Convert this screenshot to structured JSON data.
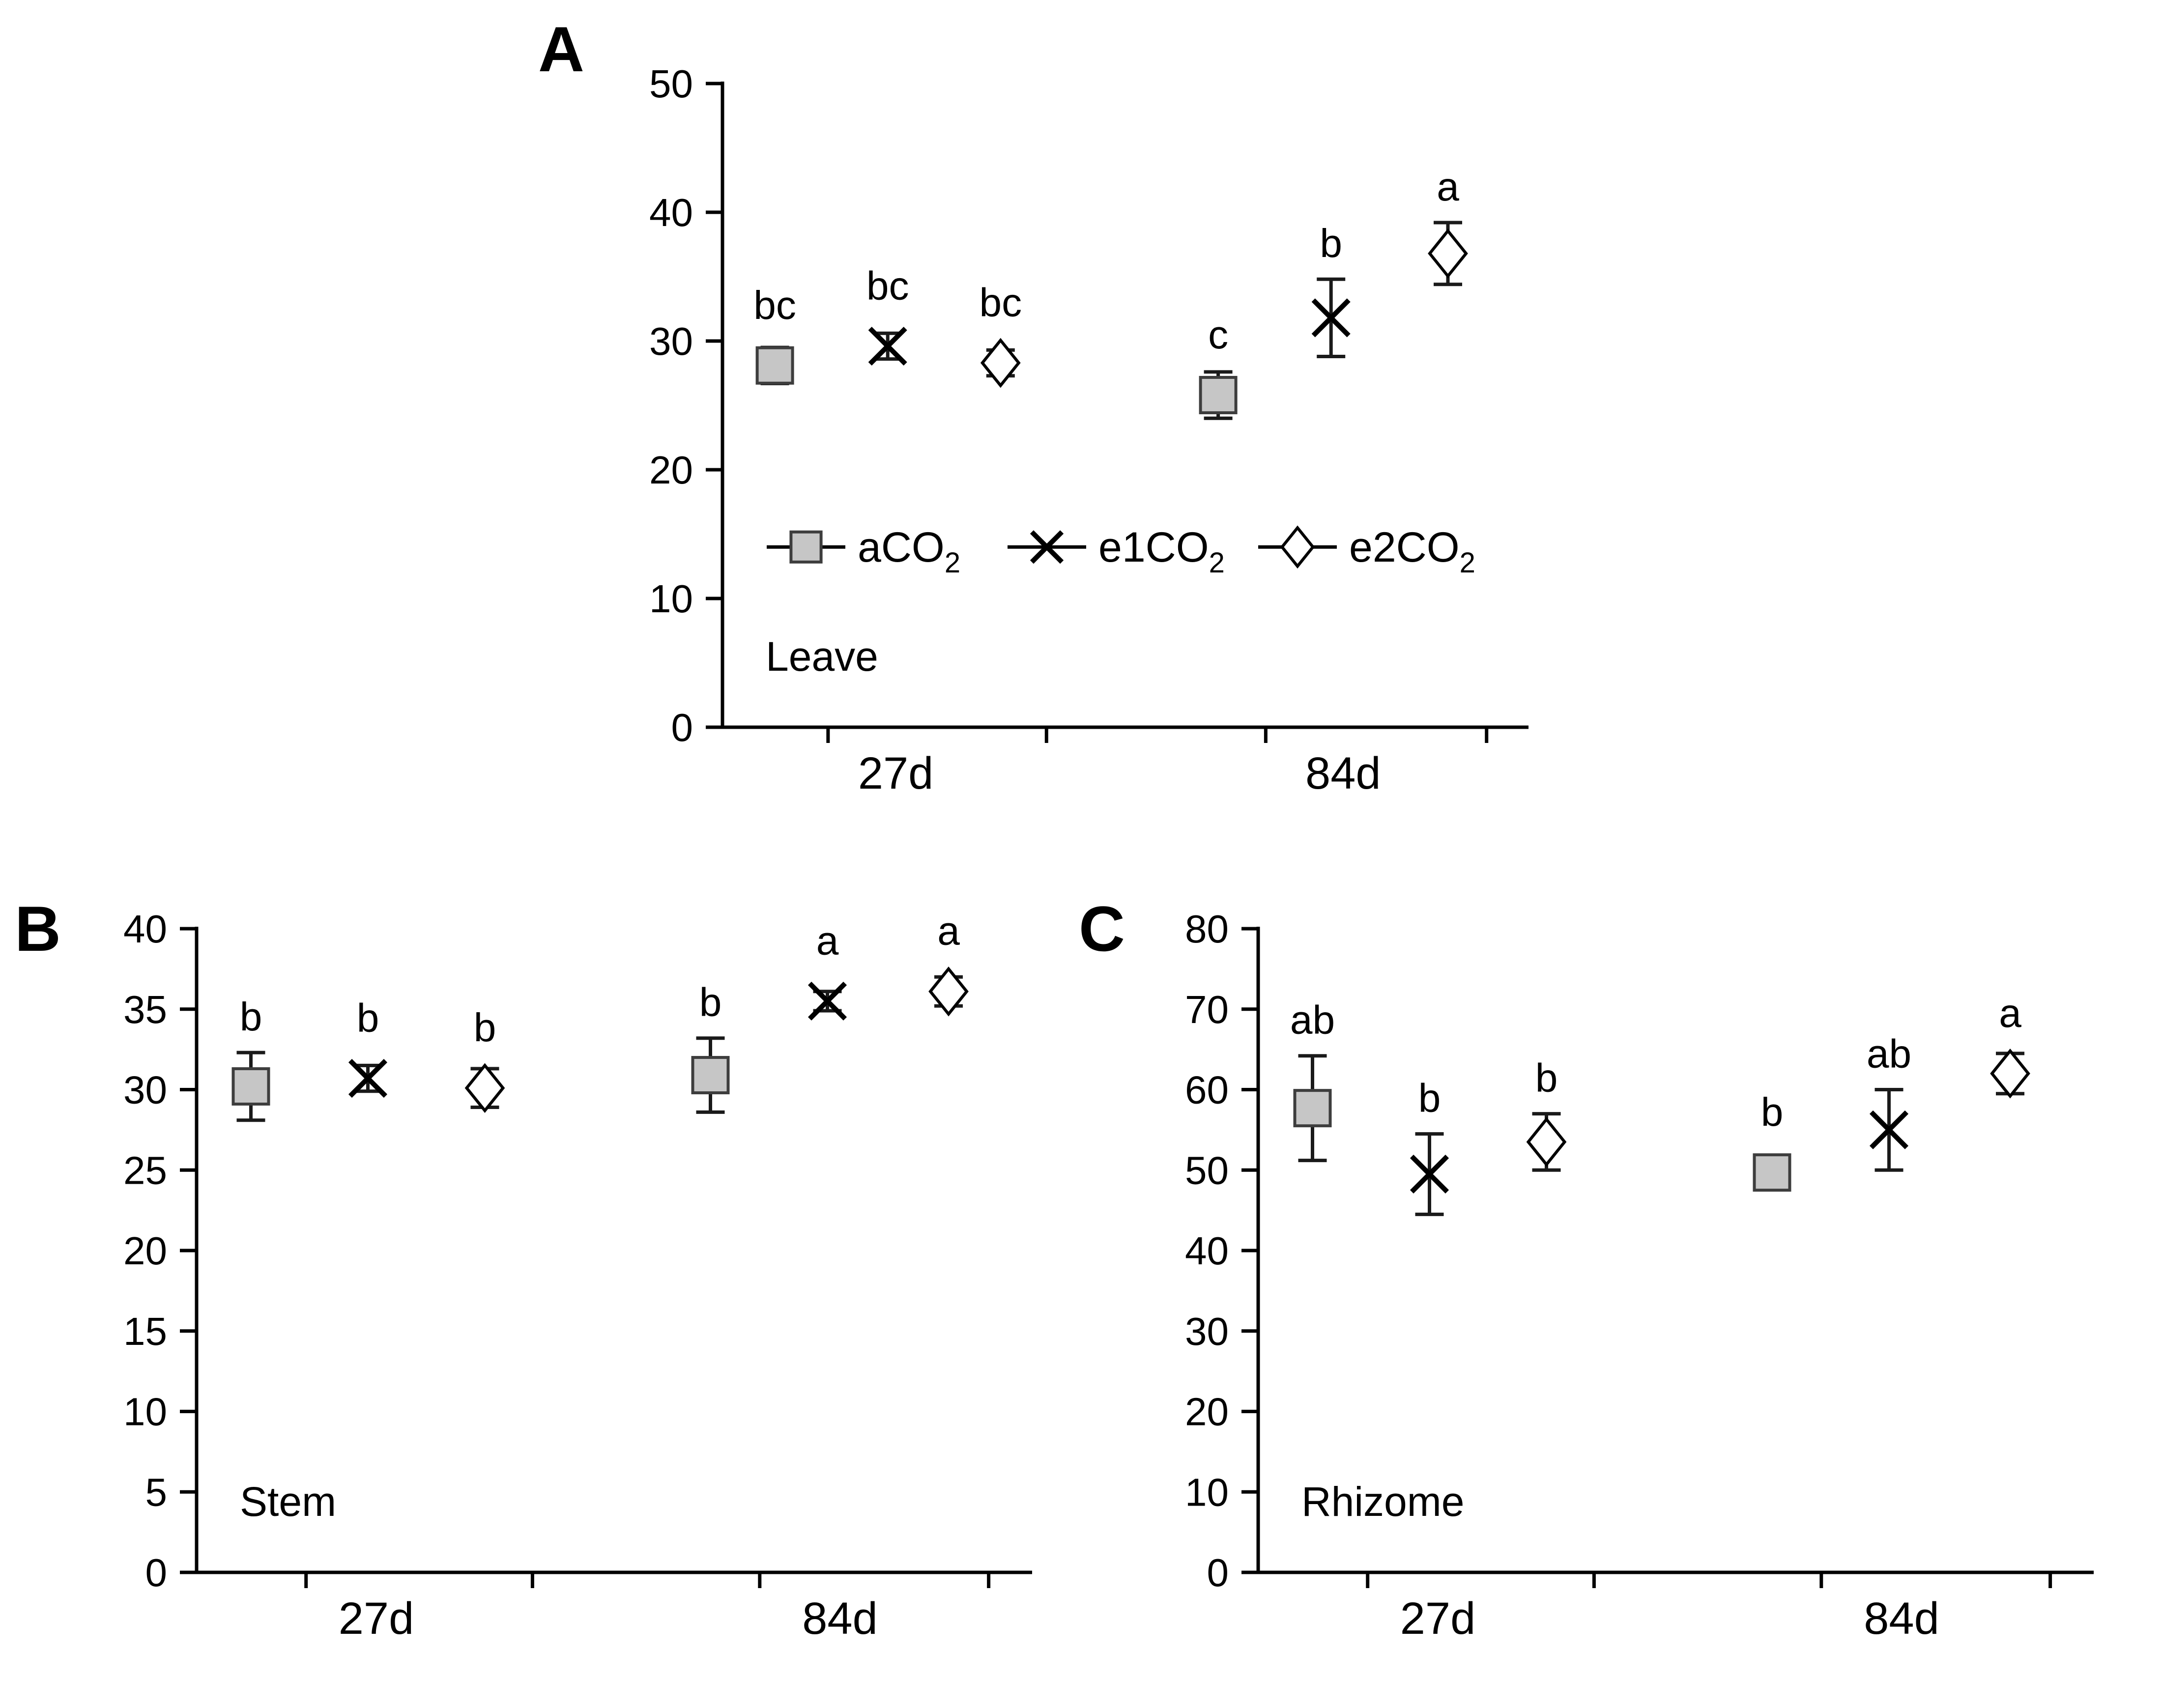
{
  "figure": {
    "background": "#ffffff",
    "axis_color": "#000000",
    "text_color": "#000000",
    "marker_fill": "#c6c6c6",
    "marker_stroke": "#3d3d3d",
    "error_bar_color": "#1a1a1a"
  },
  "legend": {
    "items": [
      {
        "label_main": "aCO",
        "label_sub": "2",
        "marker": "square"
      },
      {
        "label_main": "e1CO",
        "label_sub": "2",
        "marker": "x"
      },
      {
        "label_main": "e2CO",
        "label_sub": "2",
        "marker": "diamond"
      }
    ]
  },
  "chart_data": [
    {
      "id": "A",
      "panel_label": "A",
      "plot_label": "Leave",
      "type": "scatter",
      "x_groups": [
        "27d",
        "84d"
      ],
      "ylim": [
        0,
        50
      ],
      "ytick_step": 10,
      "yticks": [
        0,
        10,
        20,
        30,
        40,
        50
      ],
      "show_legend": true,
      "series": [
        {
          "name": "aCO2",
          "marker": "square",
          "points": [
            {
              "group": "27d",
              "y": 28.1,
              "err": 1.4,
              "sig": "bc"
            },
            {
              "group": "84d",
              "y": 25.8,
              "err": 1.8,
              "sig": "c"
            }
          ]
        },
        {
          "name": "e1CO2",
          "marker": "x",
          "points": [
            {
              "group": "27d",
              "y": 29.6,
              "err": 1.0,
              "sig": "bc"
            },
            {
              "group": "84d",
              "y": 31.8,
              "err": 3.0,
              "sig": "b"
            }
          ]
        },
        {
          "name": "e2CO2",
          "marker": "diamond",
          "points": [
            {
              "group": "27d",
              "y": 28.3,
              "err": 1.0,
              "sig": "bc"
            },
            {
              "group": "84d",
              "y": 36.8,
              "err": 2.4,
              "sig": "a"
            }
          ]
        }
      ]
    },
    {
      "id": "B",
      "panel_label": "B",
      "plot_label": "Stem",
      "type": "scatter",
      "x_groups": [
        "27d",
        "84d"
      ],
      "ylim": [
        0,
        40
      ],
      "ytick_step": 5,
      "yticks": [
        0,
        5,
        10,
        15,
        20,
        25,
        30,
        35,
        40
      ],
      "show_legend": false,
      "series": [
        {
          "name": "aCO2",
          "marker": "square",
          "points": [
            {
              "group": "27d",
              "y": 30.2,
              "err": 2.1,
              "sig": "b"
            },
            {
              "group": "84d",
              "y": 30.9,
              "err": 2.3,
              "sig": "b"
            }
          ]
        },
        {
          "name": "e1CO2",
          "marker": "x",
          "points": [
            {
              "group": "27d",
              "y": 30.7,
              "err": 0.8,
              "sig": "b"
            },
            {
              "group": "84d",
              "y": 35.5,
              "err": 0.6,
              "sig": "a"
            }
          ]
        },
        {
          "name": "e2CO2",
          "marker": "diamond",
          "points": [
            {
              "group": "27d",
              "y": 30.1,
              "err": 1.2,
              "sig": "b"
            },
            {
              "group": "84d",
              "y": 36.1,
              "err": 0.9,
              "sig": "a"
            }
          ]
        }
      ]
    },
    {
      "id": "C",
      "panel_label": "C",
      "plot_label": "Rhizome",
      "type": "scatter",
      "x_groups": [
        "27d",
        "84d"
      ],
      "ylim": [
        0,
        80
      ],
      "ytick_step": 10,
      "yticks": [
        0,
        10,
        20,
        30,
        40,
        50,
        60,
        70,
        80
      ],
      "show_legend": false,
      "series": [
        {
          "name": "aCO2",
          "marker": "square",
          "points": [
            {
              "group": "27d",
              "y": 57.7,
              "err": 6.5,
              "sig": "ab"
            },
            {
              "group": "84d",
              "y": 49.7,
              "err": 1.0,
              "sig": "b"
            }
          ]
        },
        {
          "name": "e1CO2",
          "marker": "x",
          "points": [
            {
              "group": "27d",
              "y": 49.5,
              "err": 5.0,
              "sig": "b"
            },
            {
              "group": "84d",
              "y": 55.0,
              "err": 5.0,
              "sig": "ab"
            }
          ]
        },
        {
          "name": "e2CO2",
          "marker": "diamond",
          "points": [
            {
              "group": "27d",
              "y": 53.5,
              "err": 3.5,
              "sig": "b"
            },
            {
              "group": "84d",
              "y": 62.0,
              "err": 2.5,
              "sig": "a"
            }
          ]
        }
      ]
    }
  ]
}
